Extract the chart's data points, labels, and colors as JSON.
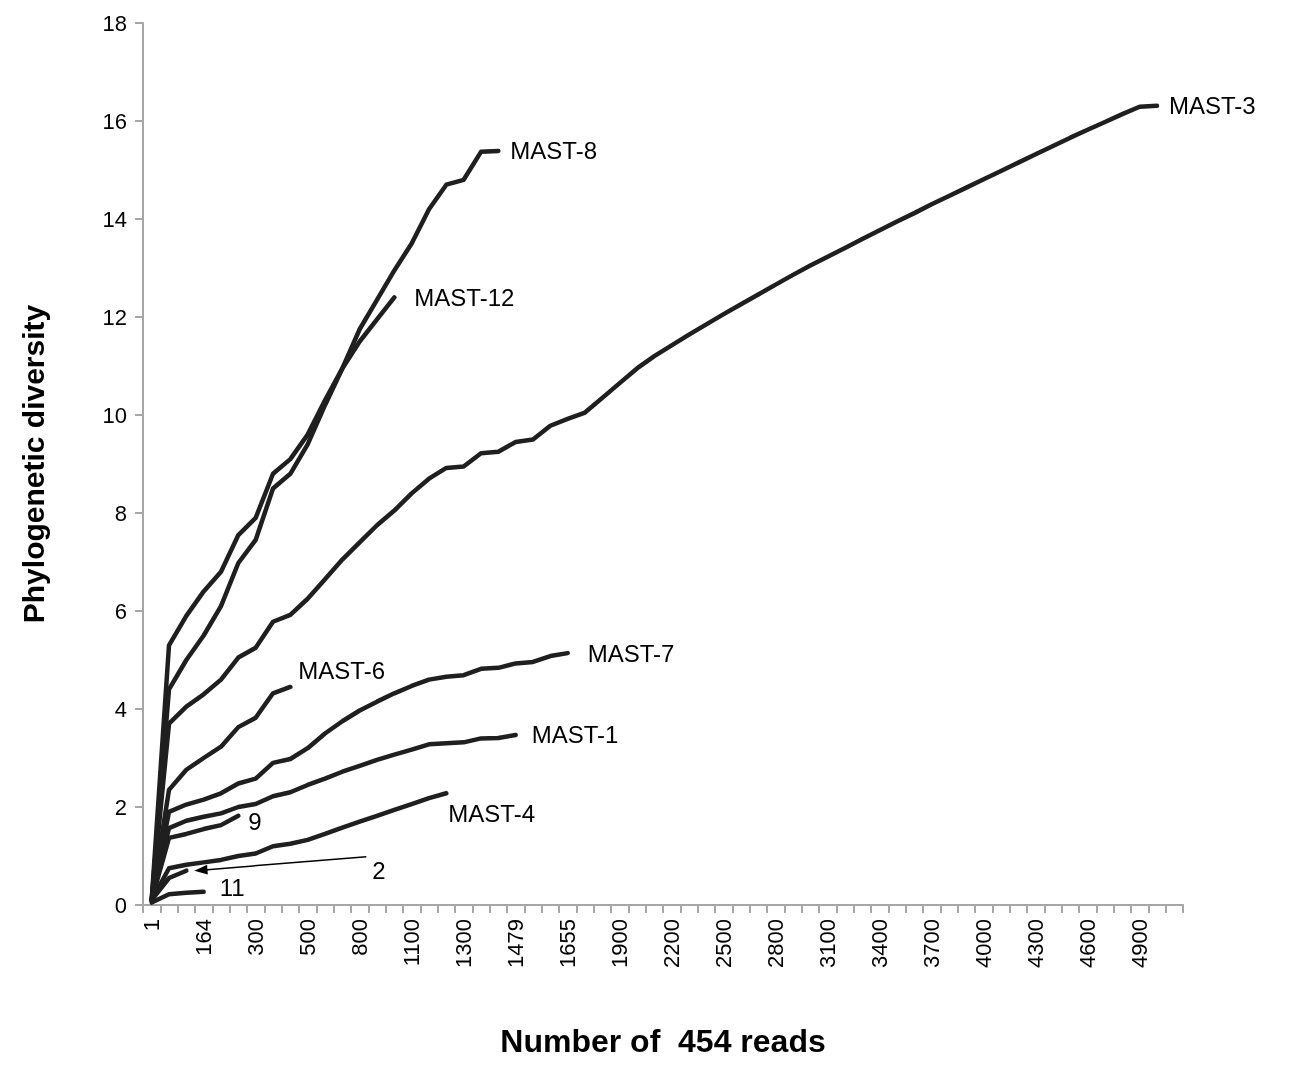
{
  "chart_data": {
    "type": "line",
    "xlabel": "Number of  454 reads",
    "ylabel": "Phylogenetic diversity",
    "categories": [
      "1",
      null,
      null,
      "164",
      null,
      null,
      "300",
      null,
      null,
      "500",
      null,
      null,
      "800",
      null,
      null,
      "1100",
      null,
      null,
      "1300",
      null,
      null,
      "1479",
      null,
      null,
      "1655",
      null,
      null,
      "1900",
      null,
      null,
      "2200",
      null,
      null,
      "2500",
      null,
      null,
      "2800",
      null,
      null,
      "3100",
      null,
      null,
      "3400",
      null,
      null,
      "3700",
      null,
      null,
      "4000",
      null,
      null,
      "4300",
      null,
      null,
      "4600",
      null,
      null,
      "4900",
      null,
      null
    ],
    "ylim": [
      0,
      18
    ],
    "yticks": [
      0,
      2,
      4,
      6,
      8,
      10,
      12,
      14,
      16,
      18
    ],
    "grid": false,
    "legend": false,
    "marker": "none",
    "line_style": "solid",
    "series": [
      {
        "name": "MAST-3",
        "color": "#1f1f1f",
        "values": [
          0.1,
          3.7,
          4.05,
          4.3,
          4.6,
          5.05,
          5.25,
          5.78,
          5.92,
          6.25,
          6.65,
          7.05,
          7.4,
          7.75,
          8.05,
          8.4,
          8.7,
          8.92,
          8.95,
          9.22,
          9.25,
          9.45,
          9.5,
          9.78,
          9.92,
          10.05,
          10.35,
          10.65,
          10.95,
          11.2,
          11.42,
          11.64,
          11.85,
          12.06,
          12.26,
          12.46,
          12.66,
          12.86,
          13.05,
          13.23,
          13.41,
          13.59,
          13.77,
          13.95,
          14.12,
          14.3,
          14.47,
          14.64,
          14.81,
          14.98,
          15.15,
          15.32,
          15.49,
          15.66,
          15.82,
          15.98,
          16.14,
          16.29,
          16.31,
          null
        ]
      },
      {
        "name": "MAST-8",
        "color": "#1f1f1f",
        "values": [
          0.1,
          5.3,
          5.9,
          6.4,
          6.8,
          7.55,
          7.9,
          8.8,
          9.1,
          9.6,
          10.3,
          10.95,
          11.75,
          12.35,
          12.95,
          13.5,
          14.2,
          14.7,
          14.8,
          15.37,
          15.39,
          null,
          null,
          null,
          null,
          null,
          null,
          null,
          null,
          null,
          null,
          null,
          null,
          null,
          null,
          null,
          null,
          null,
          null,
          null,
          null,
          null,
          null,
          null,
          null,
          null,
          null,
          null,
          null,
          null,
          null,
          null,
          null,
          null,
          null,
          null,
          null,
          null,
          null,
          null
        ]
      },
      {
        "name": "MAST-12",
        "color": "#1f1f1f",
        "values": [
          0.1,
          4.4,
          5.0,
          5.5,
          6.1,
          6.98,
          7.45,
          8.5,
          8.8,
          9.4,
          10.2,
          10.95,
          11.5,
          11.95,
          12.4,
          null,
          null,
          null,
          null,
          null,
          null,
          null,
          null,
          null,
          null,
          null,
          null,
          null,
          null,
          null,
          null,
          null,
          null,
          null,
          null,
          null,
          null,
          null,
          null,
          null,
          null,
          null,
          null,
          null,
          null,
          null,
          null,
          null,
          null,
          null,
          null,
          null,
          null,
          null,
          null,
          null,
          null,
          null,
          null,
          null
        ]
      },
      {
        "name": "MAST-7",
        "color": "#1f1f1f",
        "values": [
          0.1,
          1.9,
          2.05,
          2.15,
          2.28,
          2.48,
          2.58,
          2.9,
          2.98,
          3.2,
          3.5,
          3.75,
          3.97,
          4.15,
          4.32,
          4.47,
          4.6,
          4.66,
          4.69,
          4.82,
          4.84,
          4.93,
          4.96,
          5.08,
          5.14,
          null,
          null,
          null,
          null,
          null,
          null,
          null,
          null,
          null,
          null,
          null,
          null,
          null,
          null,
          null,
          null,
          null,
          null,
          null,
          null,
          null,
          null,
          null,
          null,
          null,
          null,
          null,
          null,
          null,
          null,
          null,
          null,
          null,
          null,
          null
        ]
      },
      {
        "name": "MAST-6",
        "color": "#1f1f1f",
        "values": [
          0.1,
          2.35,
          2.76,
          3.0,
          3.23,
          3.63,
          3.82,
          4.32,
          4.45,
          null,
          null,
          null,
          null,
          null,
          null,
          null,
          null,
          null,
          null,
          null,
          null,
          null,
          null,
          null,
          null,
          null,
          null,
          null,
          null,
          null,
          null,
          null,
          null,
          null,
          null,
          null,
          null,
          null,
          null,
          null,
          null,
          null,
          null,
          null,
          null,
          null,
          null,
          null,
          null,
          null,
          null,
          null,
          null,
          null,
          null,
          null,
          null,
          null,
          null,
          null
        ]
      },
      {
        "name": "MAST-1",
        "color": "#1f1f1f",
        "values": [
          0.1,
          1.57,
          1.72,
          1.8,
          1.87,
          2.0,
          2.06,
          2.22,
          2.3,
          2.45,
          2.58,
          2.72,
          2.84,
          2.96,
          3.07,
          3.17,
          3.28,
          3.3,
          3.32,
          3.4,
          3.41,
          3.47,
          null,
          null,
          null,
          null,
          null,
          null,
          null,
          null,
          null,
          null,
          null,
          null,
          null,
          null,
          null,
          null,
          null,
          null,
          null,
          null,
          null,
          null,
          null,
          null,
          null,
          null,
          null,
          null,
          null,
          null,
          null,
          null,
          null,
          null,
          null,
          null,
          null,
          null
        ]
      },
      {
        "name": "MAST-4",
        "color": "#1f1f1f",
        "values": [
          0.1,
          0.75,
          0.82,
          0.87,
          0.92,
          1.0,
          1.05,
          1.2,
          1.25,
          1.33,
          1.45,
          1.58,
          1.7,
          1.82,
          1.94,
          2.06,
          2.18,
          2.28,
          null,
          null,
          null,
          null,
          null,
          null,
          null,
          null,
          null,
          null,
          null,
          null,
          null,
          null,
          null,
          null,
          null,
          null,
          null,
          null,
          null,
          null,
          null,
          null,
          null,
          null,
          null,
          null,
          null,
          null,
          null,
          null,
          null,
          null,
          null,
          null,
          null,
          null,
          null,
          null,
          null,
          null
        ]
      },
      {
        "name": "9",
        "color": "#1f1f1f",
        "values": [
          0.1,
          1.37,
          1.45,
          1.55,
          1.63,
          1.82,
          null,
          null,
          null,
          null,
          null,
          null,
          null,
          null,
          null,
          null,
          null,
          null,
          null,
          null,
          null,
          null,
          null,
          null,
          null,
          null,
          null,
          null,
          null,
          null,
          null,
          null,
          null,
          null,
          null,
          null,
          null,
          null,
          null,
          null,
          null,
          null,
          null,
          null,
          null,
          null,
          null,
          null,
          null,
          null,
          null,
          null,
          null,
          null,
          null,
          null,
          null,
          null,
          null,
          null
        ]
      },
      {
        "name": "2",
        "color": "#1f1f1f",
        "values": [
          0.1,
          0.55,
          0.7,
          null,
          null,
          null,
          null,
          null,
          null,
          null,
          null,
          null,
          null,
          null,
          null,
          null,
          null,
          null,
          null,
          null,
          null,
          null,
          null,
          null,
          null,
          null,
          null,
          null,
          null,
          null,
          null,
          null,
          null,
          null,
          null,
          null,
          null,
          null,
          null,
          null,
          null,
          null,
          null,
          null,
          null,
          null,
          null,
          null,
          null,
          null,
          null,
          null,
          null,
          null,
          null,
          null,
          null,
          null,
          null,
          null
        ]
      },
      {
        "name": "11",
        "color": "#1f1f1f",
        "values": [
          0.05,
          0.22,
          0.25,
          0.27,
          null,
          null,
          null,
          null,
          null,
          null,
          null,
          null,
          null,
          null,
          null,
          null,
          null,
          null,
          null,
          null,
          null,
          null,
          null,
          null,
          null,
          null,
          null,
          null,
          null,
          null,
          null,
          null,
          null,
          null,
          null,
          null,
          null,
          null,
          null,
          null,
          null,
          null,
          null,
          null,
          null,
          null,
          null,
          null,
          null,
          null,
          null,
          null,
          null,
          null,
          null,
          null,
          null,
          null,
          null,
          null
        ]
      }
    ]
  }
}
